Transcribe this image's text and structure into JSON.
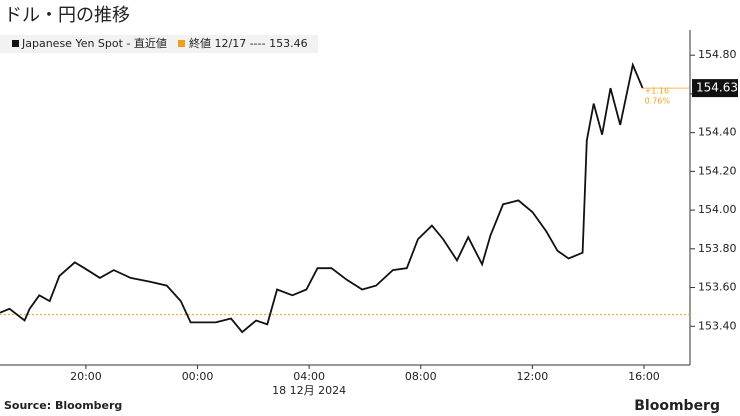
{
  "chart_data": {
    "type": "line",
    "title": "ドル・円の推移",
    "x_label": "18 12月 2024",
    "source": "Source: Bloomberg",
    "logo": "Bloomberg",
    "x": [
      16.92,
      17.26,
      17.8,
      17.98,
      18.33,
      18.7,
      19.05,
      19.6,
      19.95,
      20.5,
      21.0,
      21.6,
      22.3,
      22.9,
      23.4,
      23.75,
      24.1,
      24.65,
      25.2,
      25.6,
      26.1,
      26.5,
      26.85,
      27.4,
      27.9,
      28.3,
      28.8,
      29.35,
      29.9,
      30.4,
      31.0,
      31.5,
      31.9,
      32.4,
      32.8,
      33.3,
      33.7,
      34.2,
      34.5,
      34.95,
      35.5,
      36.0,
      36.5,
      36.9,
      37.3,
      37.8,
      37.95,
      38.2,
      38.5,
      38.8,
      39.15,
      39.6,
      39.95
    ],
    "series": [
      {
        "name": "Japanese Yen Spot - 直近値",
        "color": "#111111",
        "values": [
          153.47,
          153.49,
          153.43,
          153.49,
          153.56,
          153.53,
          153.66,
          153.73,
          153.7,
          153.65,
          153.69,
          153.65,
          153.63,
          153.61,
          153.53,
          153.42,
          153.42,
          153.42,
          153.44,
          153.37,
          153.43,
          153.41,
          153.59,
          153.56,
          153.59,
          153.7,
          153.7,
          153.64,
          153.59,
          153.61,
          153.69,
          153.7,
          153.85,
          153.92,
          153.85,
          153.74,
          153.86,
          153.72,
          153.87,
          154.03,
          154.05,
          153.99,
          153.89,
          153.79,
          153.75,
          153.78,
          154.36,
          154.55,
          154.39,
          154.63,
          154.44,
          154.75,
          154.63
        ]
      }
    ],
    "reference_line": {
      "name": "終値 12/17 ----",
      "value": 153.46,
      "color": "#f0a020"
    },
    "annotations": [
      "+1.16",
      "0.76%"
    ],
    "xlim": [
      16.92,
      41.65
    ],
    "xticks": [
      {
        "value": 20,
        "label": "20:00"
      },
      {
        "value": 24,
        "label": "00:00"
      },
      {
        "value": 28,
        "label": "04:00"
      },
      {
        "value": 32,
        "label": "08:00"
      },
      {
        "value": 36,
        "label": "12:00"
      },
      {
        "value": 40,
        "label": "16:00"
      }
    ],
    "ylim": [
      153.2,
      154.93
    ],
    "yticks": [
      {
        "value": 153.4,
        "label": "153.40"
      },
      {
        "value": 153.6,
        "label": "153.60"
      },
      {
        "value": 153.8,
        "label": "153.80"
      },
      {
        "value": 154.0,
        "label": "154.00"
      },
      {
        "value": 154.2,
        "label": "154.20"
      },
      {
        "value": 154.4,
        "label": "154.40"
      },
      {
        "value": 154.6,
        "label": "154.60"
      },
      {
        "value": 154.8,
        "label": "154.80"
      }
    ]
  }
}
